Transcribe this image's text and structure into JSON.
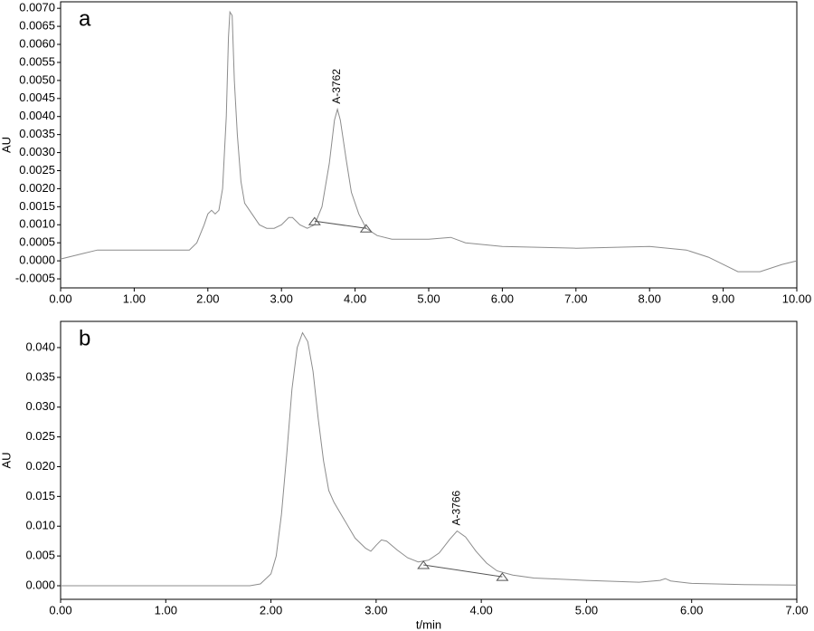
{
  "chart_data": [
    {
      "type": "line",
      "panel_label": "a",
      "y_label": "AU",
      "color": "#8c8c8c",
      "xlim": [
        0,
        10
      ],
      "ylim": [
        -0.00075,
        0.00718
      ],
      "xticks": [
        {
          "value": 0,
          "label": "0.00"
        },
        {
          "value": 1,
          "label": "1.00"
        },
        {
          "value": 2,
          "label": "2.00"
        },
        {
          "value": 3,
          "label": "3.00"
        },
        {
          "value": 4,
          "label": "4.00"
        },
        {
          "value": 5,
          "label": "5.00"
        },
        {
          "value": 6,
          "label": "6.00"
        },
        {
          "value": 7,
          "label": "7.00"
        },
        {
          "value": 8,
          "label": "8.00"
        },
        {
          "value": 9,
          "label": "9.00"
        },
        {
          "value": 10,
          "label": "10.00"
        }
      ],
      "yticks": [
        {
          "value": -0.0005,
          "label": "-0.0005"
        },
        {
          "value": 0,
          "label": "0.0000"
        },
        {
          "value": 0.0005,
          "label": "0.0005"
        },
        {
          "value": 0.001,
          "label": "0.0010"
        },
        {
          "value": 0.0015,
          "label": "0.0015"
        },
        {
          "value": 0.002,
          "label": "0.0020"
        },
        {
          "value": 0.0025,
          "label": "0.0025"
        },
        {
          "value": 0.003,
          "label": "0.0030"
        },
        {
          "value": 0.0035,
          "label": "0.0035"
        },
        {
          "value": 0.004,
          "label": "0.0040"
        },
        {
          "value": 0.0045,
          "label": "0.0045"
        },
        {
          "value": 0.005,
          "label": "0.0050"
        },
        {
          "value": 0.0055,
          "label": "0.0055"
        },
        {
          "value": 0.006,
          "label": "0.0060"
        },
        {
          "value": 0.0065,
          "label": "0.0065"
        },
        {
          "value": 0.007,
          "label": "0.0070"
        }
      ],
      "x": [
        0,
        0.3,
        0.5,
        1.0,
        1.5,
        1.75,
        1.85,
        1.95,
        2.0,
        2.05,
        2.1,
        2.15,
        2.2,
        2.25,
        2.28,
        2.3,
        2.33,
        2.36,
        2.4,
        2.45,
        2.5,
        2.6,
        2.7,
        2.8,
        2.9,
        3.0,
        3.1,
        3.15,
        3.25,
        3.35,
        3.45,
        3.55,
        3.65,
        3.72,
        3.76,
        3.8,
        3.88,
        3.95,
        4.05,
        4.15,
        4.3,
        4.5,
        5.0,
        5.3,
        5.5,
        6.0,
        7.0,
        8.0,
        8.5,
        8.8,
        9.0,
        9.2,
        9.5,
        9.8,
        10.0
      ],
      "values": [
        5e-05,
        0.0002,
        0.0003,
        0.0003,
        0.0003,
        0.0003,
        0.0005,
        0.001,
        0.0013,
        0.0014,
        0.0013,
        0.0014,
        0.002,
        0.004,
        0.0062,
        0.0069,
        0.0068,
        0.005,
        0.0035,
        0.0022,
        0.0016,
        0.0013,
        0.001,
        0.0009,
        0.0009,
        0.001,
        0.0012,
        0.0012,
        0.001,
        0.0009,
        0.001,
        0.0015,
        0.0027,
        0.0039,
        0.0042,
        0.0039,
        0.0028,
        0.0019,
        0.0013,
        0.0009,
        0.0007,
        0.0006,
        0.0006,
        0.00065,
        0.0005,
        0.0004,
        0.00035,
        0.0004,
        0.0003,
        0.0001,
        -0.0001,
        -0.0003,
        -0.0003,
        -0.0001,
        0.0
      ],
      "peak_label": "A-3762",
      "peak_baseline": {
        "x": [
          3.45,
          4.15
        ],
        "values": [
          0.0011,
          0.0009
        ]
      }
    },
    {
      "type": "line",
      "panel_label": "b",
      "y_label": "AU",
      "x_label": "t/min",
      "color": "#8c8c8c",
      "xlim": [
        0,
        7
      ],
      "ylim": [
        -0.00228,
        0.0444
      ],
      "xticks": [
        {
          "value": 0,
          "label": "0.00"
        },
        {
          "value": 1,
          "label": "1.00"
        },
        {
          "value": 2,
          "label": "2.00"
        },
        {
          "value": 3,
          "label": "3.00"
        },
        {
          "value": 4,
          "label": "4.00"
        },
        {
          "value": 5,
          "label": "5.00"
        },
        {
          "value": 6,
          "label": "6.00"
        },
        {
          "value": 7,
          "label": "7.00"
        }
      ],
      "yticks": [
        {
          "value": 0,
          "label": "0.000"
        },
        {
          "value": 0.005,
          "label": "0.005"
        },
        {
          "value": 0.01,
          "label": "0.010"
        },
        {
          "value": 0.015,
          "label": "0.015"
        },
        {
          "value": 0.02,
          "label": "0.020"
        },
        {
          "value": 0.025,
          "label": "0.025"
        },
        {
          "value": 0.03,
          "label": "0.030"
        },
        {
          "value": 0.035,
          "label": "0.035"
        },
        {
          "value": 0.04,
          "label": "0.040"
        }
      ],
      "x": [
        0,
        1.8,
        1.9,
        2.0,
        2.05,
        2.1,
        2.15,
        2.2,
        2.25,
        2.3,
        2.35,
        2.4,
        2.45,
        2.5,
        2.55,
        2.6,
        2.7,
        2.8,
        2.9,
        2.95,
        3.0,
        3.05,
        3.1,
        3.2,
        3.3,
        3.4,
        3.5,
        3.6,
        3.7,
        3.77,
        3.85,
        3.95,
        4.05,
        4.15,
        4.3,
        4.5,
        5.0,
        5.5,
        5.7,
        5.75,
        5.8,
        6.0,
        6.5,
        7.0
      ],
      "values": [
        0,
        0,
        0.0003,
        0.002,
        0.005,
        0.012,
        0.022,
        0.033,
        0.04,
        0.0425,
        0.041,
        0.036,
        0.028,
        0.021,
        0.016,
        0.014,
        0.011,
        0.008,
        0.0063,
        0.0058,
        0.0068,
        0.0077,
        0.0075,
        0.006,
        0.0047,
        0.004,
        0.0043,
        0.0055,
        0.0078,
        0.0092,
        0.0082,
        0.0058,
        0.0038,
        0.0025,
        0.0018,
        0.0013,
        0.0009,
        0.0006,
        0.0009,
        0.0012,
        0.0008,
        0.0004,
        0.0002,
        0.0001
      ],
      "peak_label": "A-3766",
      "peak_baseline": {
        "x": [
          3.45,
          4.2
        ],
        "values": [
          0.0035,
          0.0015
        ]
      }
    }
  ]
}
